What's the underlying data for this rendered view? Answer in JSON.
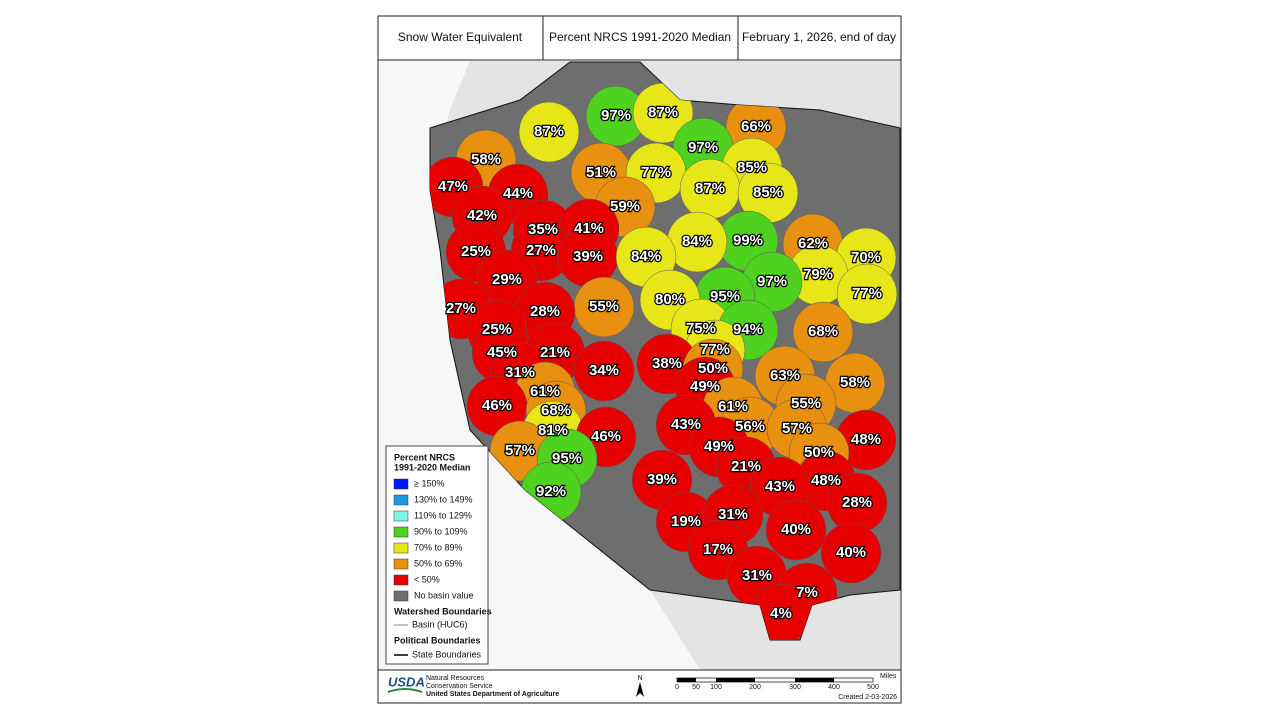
{
  "header": {
    "cells": [
      "Snow Water Equivalent",
      "Percent NRCS 1991-2020 Median",
      "February 1, 2026, end of day"
    ]
  },
  "basins": [
    "97%",
    "87%",
    "87%",
    "66%",
    "97%",
    "58%",
    "51%",
    "77%",
    "85%",
    "47%",
    "44%",
    "87%",
    "85%",
    "59%",
    "42%",
    "35%",
    "41%",
    "99%",
    "84%",
    "62%",
    "25%",
    "27%",
    "39%",
    "84%",
    "70%",
    "79%",
    "29%",
    "97%",
    "95%",
    "77%",
    "80%",
    "55%",
    "27%",
    "28%",
    "25%",
    "75%",
    "94%",
    "68%",
    "45%",
    "21%",
    "77%",
    "38%",
    "50%",
    "34%",
    "31%",
    "63%",
    "58%",
    "49%",
    "61%",
    "55%",
    "46%",
    "61%",
    "68%",
    "43%",
    "56%",
    "57%",
    "81%",
    "46%",
    "48%",
    "49%",
    "57%",
    "95%",
    "50%",
    "21%",
    "39%",
    "48%",
    "43%",
    "92%",
    "28%",
    "19%",
    "31%",
    "40%",
    "17%",
    "40%",
    "31%",
    "7%",
    "4%"
  ],
  "legend": {
    "title": [
      "Percent NRCS",
      "1991-2020 Median"
    ],
    "items": [
      {
        "label": "≥ 150%",
        "color": "#0015ff"
      },
      {
        "label": "130% to 149%",
        "color": "#1e9be0"
      },
      {
        "label": "110% to 129%",
        "color": "#7ff5e6"
      },
      {
        "label": "90% to 109%",
        "color": "#4fd11f"
      },
      {
        "label": "70% to 89%",
        "color": "#e6e619"
      },
      {
        "label": "50% to 69%",
        "color": "#e8900f"
      },
      {
        "label": "< 50%",
        "color": "#e60000"
      },
      {
        "label": "No basin value",
        "color": "#6e6e6e"
      }
    ],
    "watershed_title": "Watershed Boundaries",
    "watershed_item": "Basin (HUC6)",
    "political_title": "Political Boundaries",
    "political_item": "State Boundaries"
  },
  "footer": {
    "agency": "USDA",
    "agency_lines": [
      "Natural Resources",
      "Conservation Service",
      "United States Department of Agriculture"
    ],
    "north": "N",
    "scale_labels": [
      "0",
      "50",
      "100",
      "200",
      "300",
      "400",
      "500"
    ],
    "scale_unit": "Miles",
    "created": "Created 2-03-2026"
  }
}
